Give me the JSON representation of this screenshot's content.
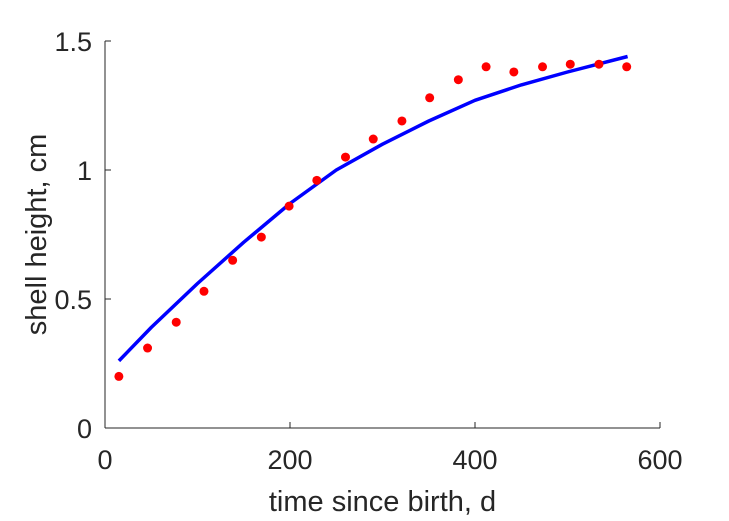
{
  "chart_data": {
    "type": "scatter",
    "xlabel": "time since birth, d",
    "ylabel": "shell height, cm",
    "xlim": [
      0,
      600
    ],
    "ylim": [
      0,
      1.5
    ],
    "xticks": [
      0,
      200,
      400,
      600
    ],
    "xtick_labels": [
      "0",
      "200",
      "400",
      "600"
    ],
    "yticks": [
      0,
      0.5,
      1,
      1.5
    ],
    "ytick_labels": [
      "0",
      "0.5",
      "1",
      "1.5"
    ],
    "grid": false,
    "series": [
      {
        "kind": "points",
        "color": "#ff0000",
        "x": [
          15,
          46,
          77,
          107,
          138,
          169,
          199,
          229,
          260,
          290,
          321,
          351,
          382,
          412,
          442,
          473,
          503,
          534,
          564
        ],
        "y": [
          0.2,
          0.31,
          0.41,
          0.53,
          0.65,
          0.74,
          0.86,
          0.96,
          1.05,
          1.12,
          1.19,
          1.28,
          1.35,
          1.4,
          1.38,
          1.4,
          1.41,
          1.41,
          1.4
        ]
      },
      {
        "kind": "line",
        "color": "#0000ff",
        "x": [
          15,
          50,
          100,
          150,
          200,
          250,
          300,
          350,
          400,
          450,
          500,
          565
        ],
        "y": [
          0.26,
          0.39,
          0.56,
          0.72,
          0.87,
          1.0,
          1.1,
          1.19,
          1.27,
          1.33,
          1.38,
          1.44
        ]
      }
    ]
  }
}
